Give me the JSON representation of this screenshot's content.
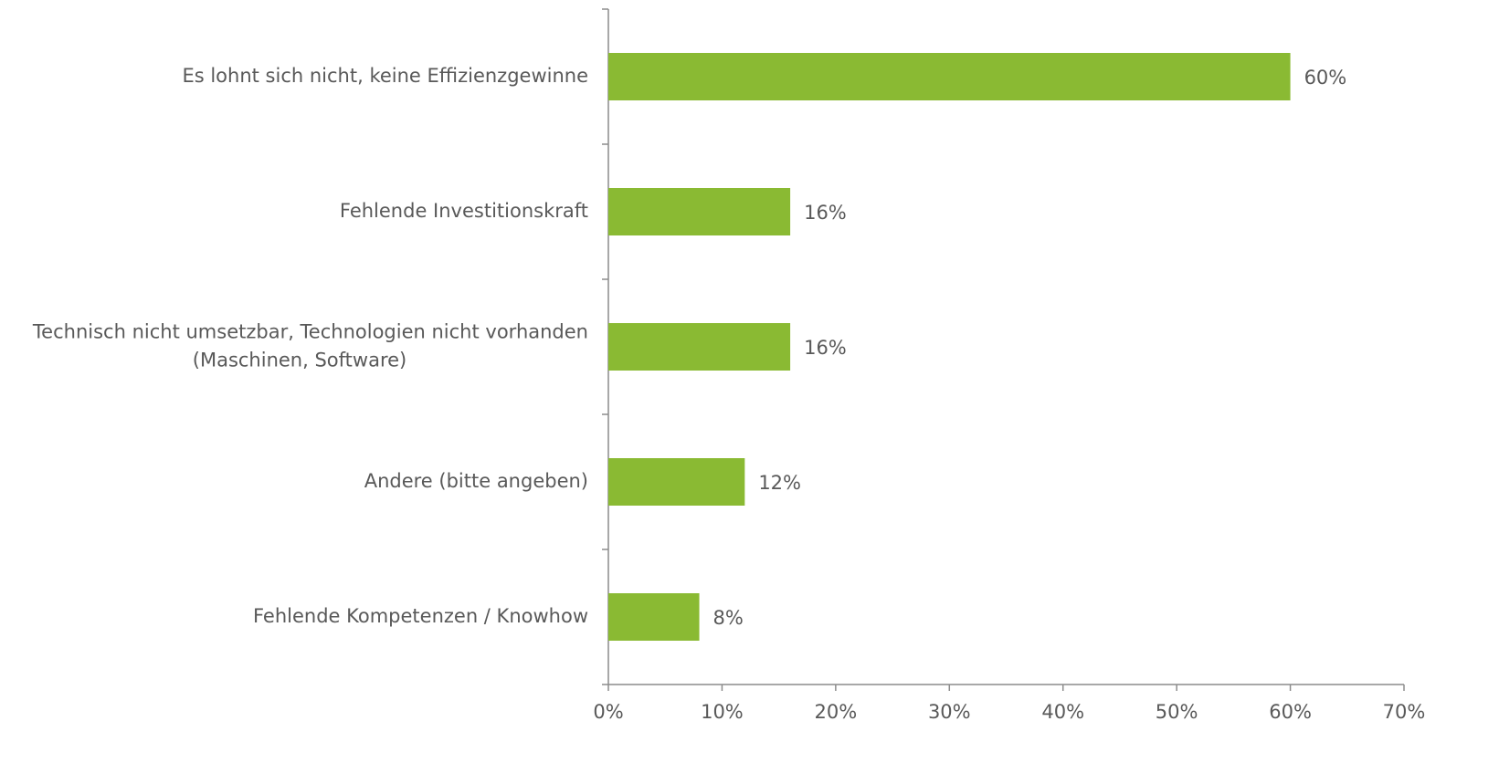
{
  "chart_data": {
    "type": "bar",
    "orientation": "horizontal",
    "categories": [
      "Es lohnt sich nicht, keine Effizienzgewinne",
      "Fehlende Investitionskraft",
      "Technisch nicht umsetzbar, Technologien nicht vorhanden\n(Maschinen, Software)",
      "Andere (bitte angeben)",
      "Fehlende Kompetenzen / Knowhow"
    ],
    "values": [
      60,
      16,
      16,
      12,
      8
    ],
    "value_labels": [
      "60%",
      "16%",
      "16%",
      "12%",
      "8%"
    ],
    "color": "#8aba33",
    "xlim": [
      0,
      70
    ],
    "xticks": [
      {
        "value": 0,
        "label": "0%"
      },
      {
        "value": 10,
        "label": "10%"
      },
      {
        "value": 20,
        "label": "20%"
      },
      {
        "value": 30,
        "label": "30%"
      },
      {
        "value": 40,
        "label": "40%"
      },
      {
        "value": 50,
        "label": "50%"
      },
      {
        "value": 60,
        "label": "60%"
      },
      {
        "value": 70,
        "label": "70%"
      }
    ],
    "grid": false
  }
}
